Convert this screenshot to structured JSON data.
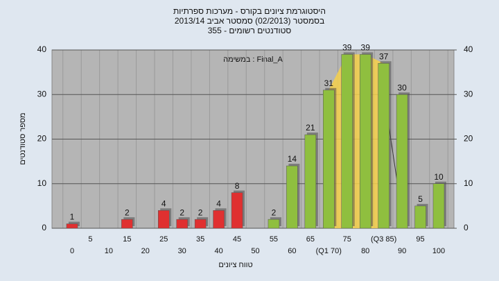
{
  "chart_data": {
    "type": "bar",
    "title": "היסטוגרמת ציונים בקורס - מערכות ספרתיות",
    "subtitle": "בסמסטר  (02/2013)  סמסטר אביב 2013/14",
    "subtitle2": "355 - סטודנטים רשומים",
    "annotation": "במשימה : Final_A",
    "x_label": "טווח ציונים",
    "y_label": "מספר סטודנטים",
    "categories": [
      "0",
      "5",
      "10",
      "15",
      "20",
      "25",
      "30",
      "35",
      "40",
      "45",
      "50",
      "55",
      "60",
      "65",
      "(Q1 70)",
      "75",
      "80",
      "(Q3 85)",
      "90",
      "95",
      "100"
    ],
    "values": [
      1,
      null,
      null,
      2,
      null,
      4,
      2,
      2,
      4,
      8,
      null,
      2,
      14,
      21,
      31,
      39,
      39,
      37,
      30,
      5,
      10
    ],
    "bar_colors": [
      "#e03030",
      "#e03030",
      "#e03030",
      "#e03030",
      "#e03030",
      "#e03030",
      "#e03030",
      "#e03030",
      "#e03030",
      "#e03030",
      "#e03030",
      "#8fbf3f",
      "#8fbf3f",
      "#8fbf3f",
      "#8fbf3f",
      "#8fbf3f",
      "#8fbf3f",
      "#8fbf3f",
      "#8fbf3f",
      "#8fbf3f",
      "#8fbf3f"
    ],
    "ylim": [
      0,
      40
    ],
    "yticks": [
      0,
      10,
      20,
      30,
      40
    ],
    "y2lim": [
      0,
      40
    ],
    "y2ticks": [
      0,
      10,
      20,
      30,
      40
    ],
    "grid": true
  }
}
